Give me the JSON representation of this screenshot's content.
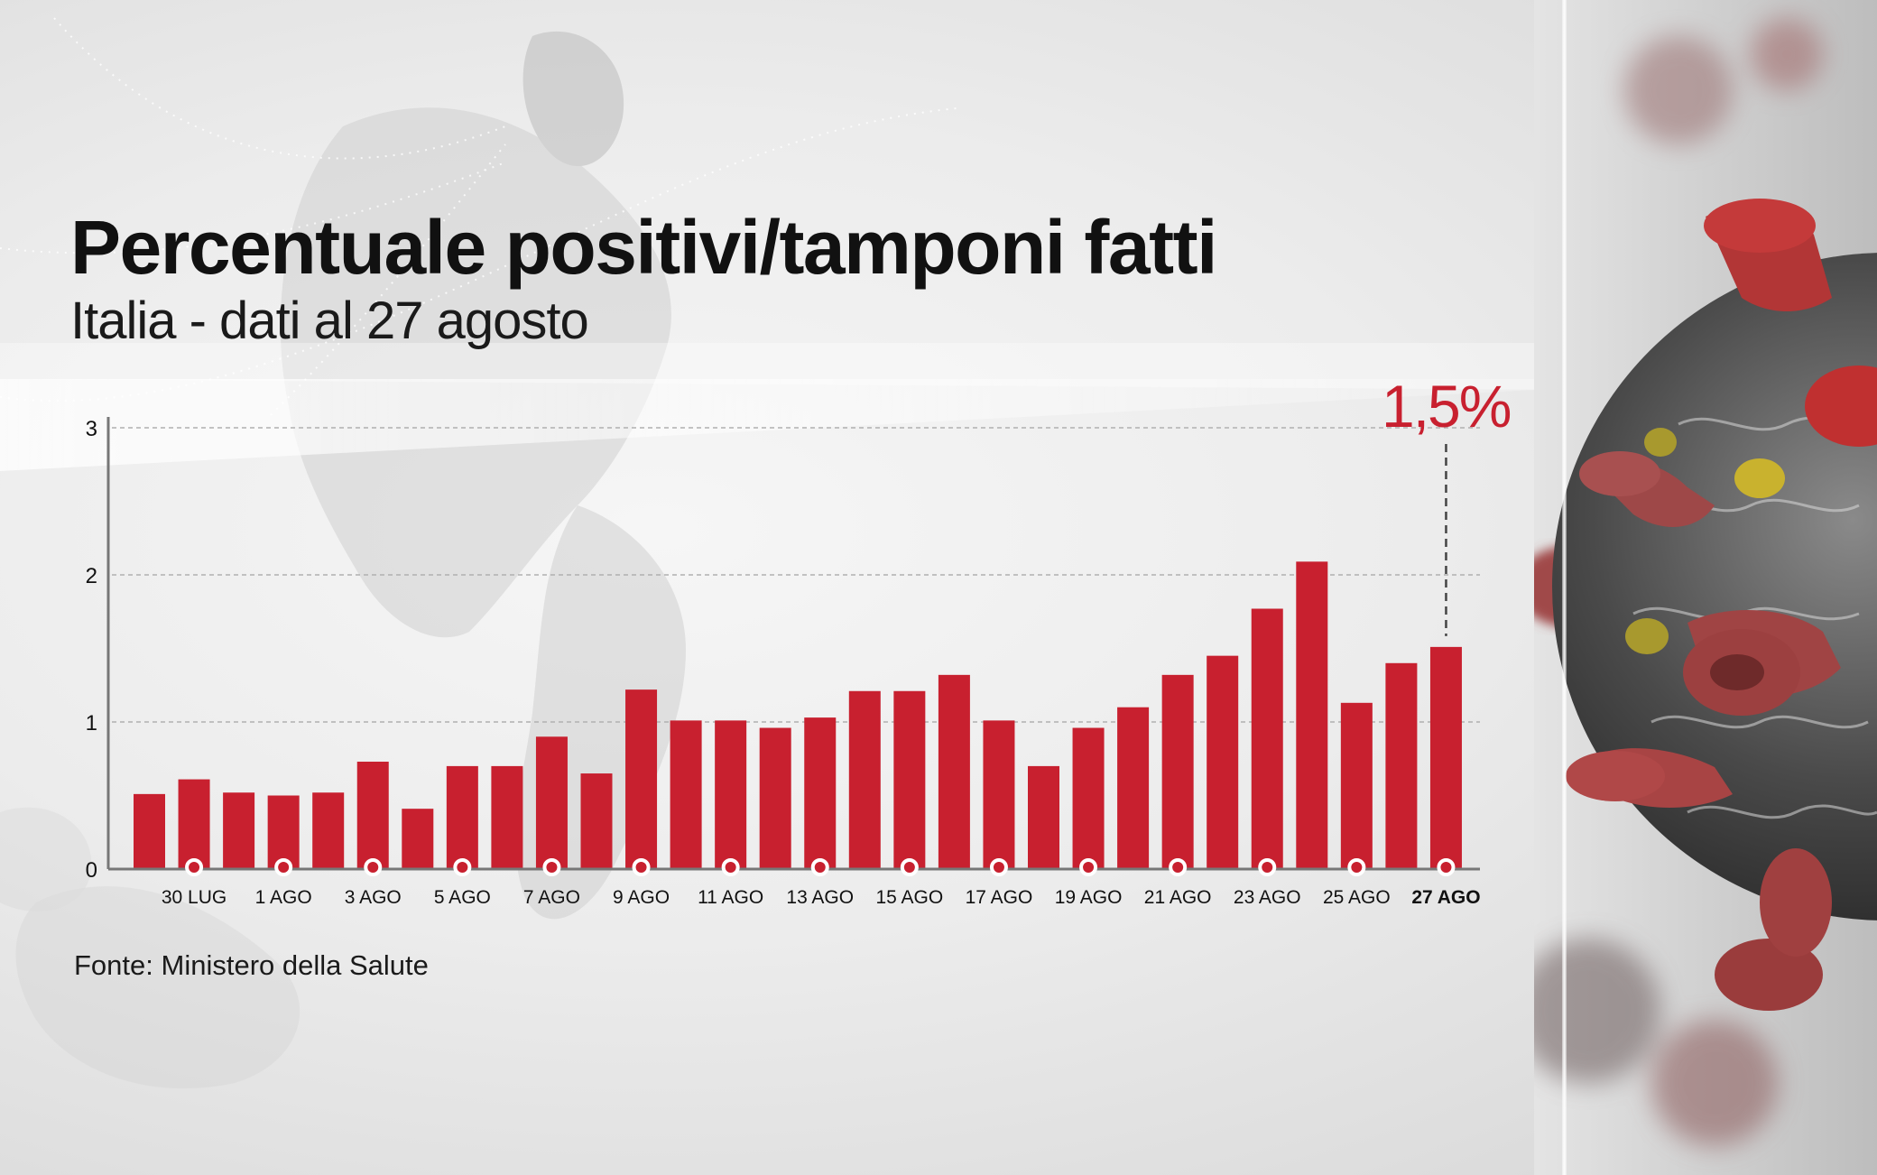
{
  "header": {
    "title": "Percentuale positivi/tamponi fatti",
    "subtitle": "Italia - dati al 27 agosto"
  },
  "footer": {
    "source": "Fonte: Ministero della Salute"
  },
  "callout": {
    "label": "1,5%",
    "target_index": 29
  },
  "colors": {
    "bar": "#c8202f",
    "callout": "#c8202f",
    "axis": "#777777",
    "grid": "#b0b0b0"
  },
  "chart_data": {
    "type": "bar",
    "title": "Percentuale positivi/tamponi fatti",
    "subtitle": "Italia - dati al 27 agosto",
    "xlabel": "",
    "ylabel": "",
    "ylim": [
      0,
      3
    ],
    "yticks": [
      0,
      1,
      2,
      3
    ],
    "grid": true,
    "legend": null,
    "categories": [
      "29 LUG",
      "30 LUG",
      "31 LUG",
      "1 AGO",
      "2 AGO",
      "3 AGO",
      "4 AGO",
      "5 AGO",
      "6 AGO",
      "7 AGO",
      "8 AGO",
      "9 AGO",
      "10 AGO",
      "11 AGO",
      "12 AGO",
      "13 AGO",
      "14 AGO",
      "15 AGO",
      "16 AGO",
      "17 AGO",
      "18 AGO",
      "19 AGO",
      "20 AGO",
      "21 AGO",
      "22 AGO",
      "23 AGO",
      "24 AGO",
      "25 AGO",
      "26 AGO",
      "27 AGO"
    ],
    "values": [
      0.51,
      0.61,
      0.52,
      0.5,
      0.52,
      0.73,
      0.41,
      0.7,
      0.7,
      0.9,
      0.65,
      1.22,
      1.01,
      1.01,
      0.96,
      1.03,
      1.21,
      1.21,
      1.32,
      1.01,
      0.7,
      0.96,
      1.1,
      1.32,
      1.45,
      1.77,
      2.09,
      1.13,
      1.4,
      1.51
    ],
    "visible_tick_labels": [
      "30 LUG",
      "1 AGO",
      "3 AGO",
      "5 AGO",
      "7 AGO",
      "9 AGO",
      "11 AGO",
      "13 AGO",
      "15 AGO",
      "17 AGO",
      "19 AGO",
      "21 AGO",
      "23 AGO",
      "25 AGO",
      "27 AGO"
    ],
    "highlighted_label": "27 AGO",
    "annotations": [
      {
        "text": "1,5%",
        "category": "27 AGO"
      }
    ],
    "source": "Fonte: Ministero della Salute"
  }
}
